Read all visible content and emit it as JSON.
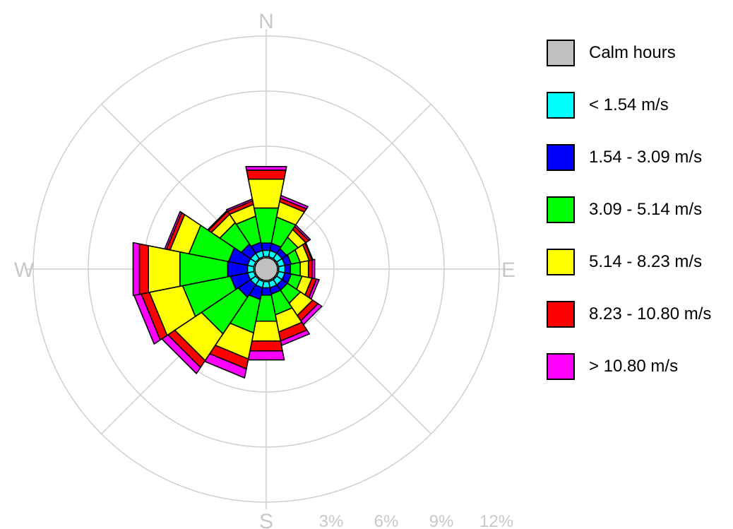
{
  "chart_data": {
    "type": "wind-rose",
    "compass": {
      "north": "N",
      "east": "E",
      "south": "S",
      "west": "W"
    },
    "radial_ticks": [
      "3%",
      "6%",
      "9%",
      "12%"
    ],
    "radial_max": 12,
    "directions_deg": [
      0,
      22.5,
      45,
      67.5,
      90,
      112.5,
      135,
      157.5,
      180,
      202.5,
      225,
      247.5,
      270,
      292.5,
      315,
      337.5
    ],
    "calm": {
      "name": "Calm hours",
      "color": "#c0c0c0"
    },
    "series": [
      {
        "name": "< 1.54 m/s",
        "color": "#00ffff",
        "values": [
          0.35,
          0.35,
          0.35,
          0.35,
          0.35,
          0.35,
          0.35,
          0.35,
          0.35,
          0.35,
          0.35,
          0.35,
          0.35,
          0.35,
          0.35,
          0.35
        ]
      },
      {
        "name": "1.54 - 3.09 m/s",
        "color": "#0000ff",
        "values": [
          0.4,
          0.4,
          0.3,
          0.35,
          0.3,
          0.35,
          0.35,
          0.35,
          0.4,
          0.65,
          0.8,
          0.95,
          1.1,
          1.05,
          0.6,
          0.45
        ]
      },
      {
        "name": "3.09 - 5.14 m/s",
        "color": "#00ff00",
        "values": [
          1.95,
          1.45,
          0.75,
          0.5,
          0.55,
          0.6,
          0.85,
          1.15,
          1.45,
          1.85,
          2.4,
          2.65,
          2.65,
          2.2,
          1.4,
          1.45
        ]
      },
      {
        "name": "5.14 - 8.23 m/s",
        "color": "#ffff00",
        "values": [
          1.6,
          0.85,
          0.5,
          0.5,
          0.45,
          0.55,
          0.8,
          0.95,
          1.1,
          1.45,
          1.75,
          1.85,
          1.75,
          1.05,
          0.55,
          0.65
        ]
      },
      {
        "name": "8.23 - 10.80 m/s",
        "color": "#ff0000",
        "values": [
          0.5,
          0.2,
          0.2,
          0.15,
          0.2,
          0.25,
          0.35,
          0.5,
          0.55,
          0.55,
          0.45,
          0.45,
          0.5,
          0.2,
          0.2,
          0.2
        ]
      },
      {
        "name": "> 10.80 m/s",
        "color": "#ff00ff",
        "values": [
          0.2,
          0.15,
          0.1,
          0.05,
          0.15,
          0.15,
          0.25,
          0.25,
          0.5,
          0.5,
          0.4,
          0.4,
          0.35,
          0.1,
          0.05,
          0.1
        ]
      }
    ],
    "grid": true
  }
}
